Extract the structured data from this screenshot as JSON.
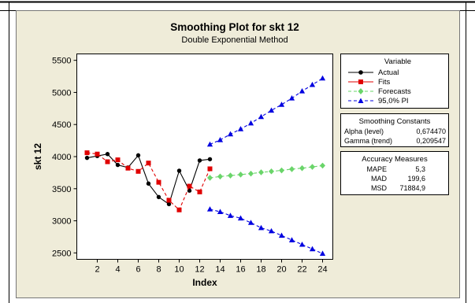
{
  "chart_data": {
    "type": "line",
    "title": "Smoothing Plot for skt 12",
    "subtitle": "Double Exponential Method",
    "xlabel": "Index",
    "ylabel": "skt 12",
    "xlim": [
      0,
      25
    ],
    "ylim": [
      2400,
      5600
    ],
    "xticks": [
      2,
      4,
      6,
      8,
      10,
      12,
      14,
      16,
      18,
      20,
      22,
      24
    ],
    "yticks": [
      2500,
      3000,
      3500,
      4000,
      4500,
      5000,
      5500
    ],
    "grid": false,
    "legend_position": "right",
    "series": [
      {
        "name": "Actual",
        "color": "#000000",
        "marker": "circle",
        "line": "solid",
        "x": [
          1,
          2,
          3,
          4,
          5,
          6,
          7,
          8,
          9,
          10,
          11,
          12,
          13
        ],
        "y": [
          3980,
          4010,
          4040,
          3870,
          3830,
          4020,
          3580,
          3370,
          3260,
          3780,
          3470,
          3940,
          3960
        ]
      },
      {
        "name": "Fits",
        "color": "#e00000",
        "marker": "square",
        "line": "dashed",
        "x": [
          1,
          2,
          3,
          4,
          5,
          6,
          7,
          8,
          9,
          10,
          11,
          12,
          13
        ],
        "y": [
          4060,
          4040,
          3920,
          3950,
          3820,
          3770,
          3900,
          3600,
          3320,
          3170,
          3540,
          3450,
          3810
        ]
      },
      {
        "name": "Forecasts",
        "color": "#6ad56a",
        "marker": "diamond",
        "line": "dashed",
        "x": [
          13,
          14,
          15,
          16,
          17,
          18,
          19,
          20,
          21,
          22,
          23,
          24
        ],
        "y": [
          3670,
          3690,
          3705,
          3720,
          3735,
          3755,
          3770,
          3785,
          3805,
          3820,
          3840,
          3860
        ]
      },
      {
        "name": "95,0% PI",
        "color": "#0000e0",
        "marker": "triangle",
        "line": "dashed",
        "x": [
          13,
          14,
          15,
          16,
          17,
          18,
          19,
          20,
          21,
          22,
          23,
          24
        ],
        "y": [
          4190,
          4260,
          4350,
          4430,
          4520,
          4620,
          4720,
          4810,
          4910,
          5020,
          5120,
          5220
        ],
        "y2": [
          3180,
          3140,
          3080,
          3040,
          2970,
          2890,
          2840,
          2770,
          2700,
          2630,
          2560,
          2490
        ]
      }
    ]
  },
  "legend": {
    "title": "Variable",
    "items": [
      "Actual",
      "Fits",
      "Forecasts",
      "95,0% PI"
    ]
  },
  "smoothing": {
    "title": "Smoothing Constants",
    "rows": [
      {
        "label": "Alpha (level)",
        "value": "0,674470"
      },
      {
        "label": "Gamma (trend)",
        "value": "0,209547"
      }
    ]
  },
  "accuracy": {
    "title": "Accuracy Measures",
    "rows": [
      {
        "label": "MAPE",
        "value": "5,3"
      },
      {
        "label": "MAD",
        "value": "199,6"
      },
      {
        "label": "MSD",
        "value": "71884,9"
      }
    ]
  },
  "colors": {
    "background": "#efecd9",
    "plot_area": "#ffffff",
    "actual": "#000000",
    "fits": "#e00000",
    "forecasts": "#6ad56a",
    "pi": "#0000e0"
  }
}
